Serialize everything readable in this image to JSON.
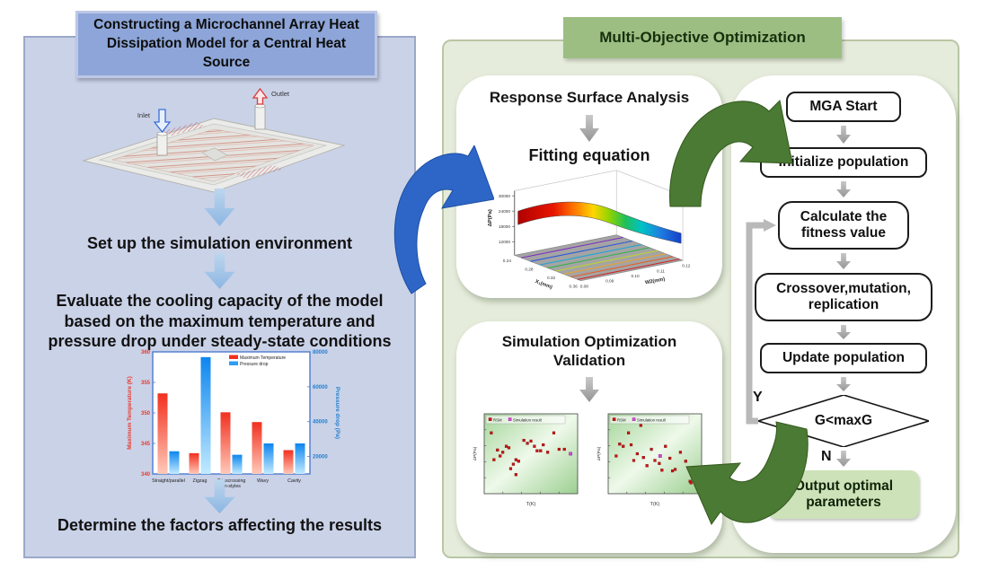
{
  "left_panel": {
    "title": "Constructing a Microchannel Array Heat Dissipation Model for a Central Heat Source",
    "model": {
      "inlet_label": "Inlet",
      "outlet_label": "Outlet"
    },
    "steps": [
      "Set up the simulation environment",
      "Evaluate the cooling capacity of the model based on the maximum temperature and pressure drop under steady-state conditions",
      "Determine the factors affecting the results"
    ]
  },
  "right_panel": {
    "title": "Multi-Objective Optimization",
    "response_box": {
      "heading": "Response Surface Analysis",
      "subheading": "Fitting equation"
    },
    "validation_box": {
      "heading": "Simulation Optimization Validation"
    },
    "flowchart": {
      "start": "MGA Start",
      "nodes": [
        "Initialize population",
        "Calculate the fitness value",
        "Crossover,mutation, replication",
        "Update population"
      ],
      "decision": "G<maxG",
      "yes_label": "Y",
      "no_label": "N",
      "output": "Output optimal parameters"
    }
  },
  "chart_data": [
    {
      "id": "cooling-comparison",
      "type": "bar",
      "categories": [
        "Straight/parallel",
        "Zigzag",
        "Crisscrossing fin-styles",
        "Wavy",
        "Cavity"
      ],
      "series": [
        {
          "name": "Maximum Temperature",
          "axis": "left",
          "color": "#f2301f",
          "values": [
            353.2,
            343.4,
            350.1,
            348.5,
            343.9
          ]
        },
        {
          "name": "Pressure drop",
          "axis": "right",
          "color": "#2a9df4",
          "values": [
            23000,
            77000,
            21000,
            27500,
            27500
          ]
        }
      ],
      "left_axis": {
        "label": "Maximum Temperature (K)",
        "min": 340,
        "max": 360,
        "ticks": [
          340,
          345,
          350,
          355,
          360
        ]
      },
      "right_axis": {
        "label": "Pressure drop (Pa)",
        "min": 10000,
        "max": 80000,
        "ticks": [
          20000,
          40000,
          60000,
          80000
        ]
      }
    },
    {
      "id": "response-surface",
      "type": "surface",
      "zlabel": "ΔP(Pa)",
      "xlabel": "X₁(mm)",
      "ylabel": "W2(mm)",
      "x_ticks": [
        "0.24",
        "0.28",
        "0.32",
        "0.36"
      ],
      "y_ticks": [
        "0.08",
        "0.09",
        "0.10",
        "0.11",
        "0.12"
      ],
      "z_ticks": [
        "30000",
        "24000",
        "18000",
        "12000"
      ],
      "description": "Rainbow fitted response surface, high ΔP at small X₁ sloping down to low ΔP at large W2, with colored contour bands projected on the gray base plane"
    },
    {
      "id": "validation-left",
      "type": "scatter",
      "xlabel": "T(K)",
      "ylabel": "ΔP(Pa)",
      "legend": [
        "RSM",
        "Simulation result"
      ],
      "points": [
        [
          0.05,
          0.78
        ],
        [
          0.08,
          0.42
        ],
        [
          0.12,
          0.55
        ],
        [
          0.15,
          0.47
        ],
        [
          0.18,
          0.52
        ],
        [
          0.22,
          0.6
        ],
        [
          0.25,
          0.58
        ],
        [
          0.27,
          0.3
        ],
        [
          0.3,
          0.36
        ],
        [
          0.33,
          0.22
        ],
        [
          0.33,
          0.42
        ],
        [
          0.36,
          0.4
        ],
        [
          0.42,
          0.68
        ],
        [
          0.46,
          0.64
        ],
        [
          0.5,
          0.67
        ],
        [
          0.54,
          0.6
        ],
        [
          0.57,
          0.54
        ],
        [
          0.61,
          0.54
        ],
        [
          0.64,
          0.62
        ],
        [
          0.69,
          0.52
        ],
        [
          0.76,
          0.78
        ],
        [
          0.82,
          0.56
        ],
        [
          0.88,
          0.56
        ]
      ],
      "highlight_point": [
        0.95,
        0.5
      ]
    },
    {
      "id": "validation-right",
      "type": "scatter",
      "xlabel": "T(K)",
      "ylabel": "ΔP(Pa)",
      "legend": [
        "RSM",
        "Simulation result"
      ],
      "points": [
        [
          0.06,
          0.47
        ],
        [
          0.1,
          0.63
        ],
        [
          0.14,
          0.6
        ],
        [
          0.2,
          0.78
        ],
        [
          0.23,
          0.62
        ],
        [
          0.26,
          0.41
        ],
        [
          0.3,
          0.5
        ],
        [
          0.34,
          0.88
        ],
        [
          0.37,
          0.45
        ],
        [
          0.41,
          0.34
        ],
        [
          0.46,
          0.56
        ],
        [
          0.5,
          0.41
        ],
        [
          0.55,
          0.37
        ],
        [
          0.58,
          0.28
        ],
        [
          0.62,
          0.6
        ],
        [
          0.67,
          0.44
        ],
        [
          0.7,
          0.27
        ],
        [
          0.73,
          0.29
        ],
        [
          0.79,
          0.52
        ],
        [
          0.85,
          0.4
        ],
        [
          0.9,
          0.13
        ],
        [
          0.91,
          0.11
        ]
      ],
      "highlight_point": [
        0.56,
        0.47
      ]
    }
  ],
  "colors": {
    "left_panel_bg": "#cad2e8",
    "left_title_bg": "#8da5d8",
    "right_panel_bg": "#e6ecdb",
    "right_title_bg": "#9dbe83",
    "big_blue_arrow": "#2e66c8",
    "big_green_arrow": "#4a7a33",
    "output_node_bg": "#cde2b8",
    "temperature_red": "#f2301f",
    "pressure_blue": "#2a9df4"
  }
}
